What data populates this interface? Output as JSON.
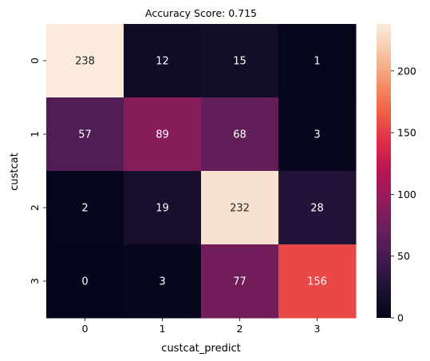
{
  "chart_data": {
    "type": "heatmap",
    "title": "Accuracy Score: 0.715",
    "xlabel": "custcat_predict",
    "ylabel": "custcat",
    "x_categories": [
      "0",
      "1",
      "2",
      "3"
    ],
    "y_categories": [
      "0",
      "1",
      "2",
      "3"
    ],
    "values": [
      [
        238,
        12,
        15,
        1
      ],
      [
        57,
        89,
        68,
        3
      ],
      [
        2,
        19,
        232,
        28
      ],
      [
        0,
        3,
        77,
        156
      ]
    ],
    "colormap": "rocket",
    "color_range": [
      0,
      238
    ],
    "colorbar_ticks": [
      0,
      50,
      100,
      150,
      200
    ],
    "annotation_colors": {
      "on_dark": "#ffffff",
      "on_light": "#262626"
    }
  }
}
